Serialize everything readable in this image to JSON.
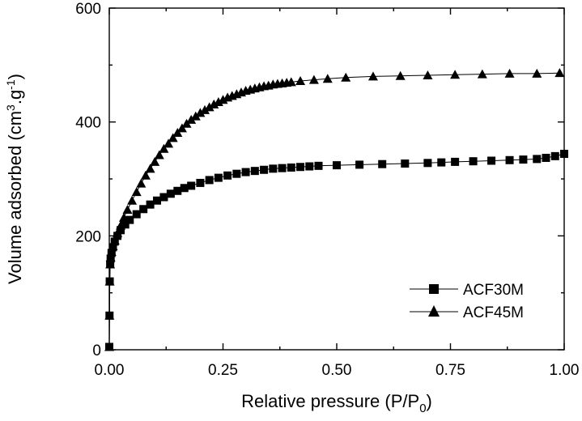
{
  "chart_data": {
    "type": "scatter",
    "title": "",
    "xlabel": "Relative pressure (P/P",
    "xlabel_sub": "0",
    "xlabel_end": ")",
    "ylabel": "Volume adsorbed (cm",
    "ylabel_sup1": "3",
    "ylabel_mid": ".g",
    "ylabel_sup2": "-1",
    "ylabel_end": ")",
    "xlim": [
      0.0,
      1.0
    ],
    "ylim": [
      0,
      600
    ],
    "xticks": [
      "0.00",
      "0.25",
      "0.50",
      "0.75",
      "1.00"
    ],
    "yticks": [
      "0",
      "200",
      "400",
      "600"
    ],
    "grid": false,
    "legend_position": "bottom-right",
    "series": [
      {
        "name": "ACF30M",
        "marker": "square",
        "x": [
          0.0,
          0.0005,
          0.001,
          0.002,
          0.003,
          0.005,
          0.008,
          0.012,
          0.018,
          0.025,
          0.035,
          0.045,
          0.06,
          0.075,
          0.09,
          0.105,
          0.12,
          0.135,
          0.15,
          0.165,
          0.18,
          0.2,
          0.22,
          0.24,
          0.26,
          0.28,
          0.3,
          0.32,
          0.34,
          0.36,
          0.38,
          0.4,
          0.42,
          0.44,
          0.46,
          0.5,
          0.55,
          0.6,
          0.65,
          0.7,
          0.73,
          0.76,
          0.8,
          0.84,
          0.88,
          0.91,
          0.94,
          0.96,
          0.98,
          1.0
        ],
        "y": [
          5,
          60,
          120,
          150,
          160,
          170,
          180,
          190,
          200,
          210,
          220,
          228,
          238,
          247,
          255,
          262,
          268,
          274,
          279,
          284,
          288,
          293,
          298,
          302,
          306,
          309,
          312,
          314,
          316,
          318,
          319,
          320,
          321,
          322,
          323,
          324,
          325,
          326,
          327,
          328,
          329,
          330,
          331,
          332,
          333,
          334,
          335,
          337,
          340,
          344
        ]
      },
      {
        "name": "ACF45M",
        "marker": "triangle",
        "x": [
          0.0,
          0.0005,
          0.001,
          0.002,
          0.003,
          0.005,
          0.008,
          0.012,
          0.018,
          0.025,
          0.032,
          0.04,
          0.05,
          0.06,
          0.07,
          0.08,
          0.09,
          0.1,
          0.11,
          0.12,
          0.13,
          0.14,
          0.15,
          0.16,
          0.17,
          0.18,
          0.19,
          0.2,
          0.21,
          0.22,
          0.23,
          0.24,
          0.25,
          0.26,
          0.27,
          0.28,
          0.29,
          0.3,
          0.31,
          0.32,
          0.33,
          0.34,
          0.35,
          0.36,
          0.37,
          0.38,
          0.39,
          0.4,
          0.42,
          0.45,
          0.48,
          0.52,
          0.58,
          0.64,
          0.7,
          0.76,
          0.82,
          0.88,
          0.94,
          0.99
        ],
        "y": [
          5,
          60,
          120,
          150,
          162,
          172,
          182,
          192,
          205,
          218,
          232,
          246,
          262,
          277,
          292,
          306,
          318,
          330,
          342,
          353,
          362,
          372,
          381,
          389,
          397,
          404,
          410,
          416,
          421,
          426,
          431,
          435,
          439,
          443,
          446,
          449,
          452,
          455,
          457,
          459,
          461,
          463,
          464,
          466,
          467,
          468,
          469,
          470,
          472,
          474,
          476,
          478,
          480,
          481,
          482,
          483,
          484,
          485,
          485,
          486
        ]
      }
    ]
  }
}
